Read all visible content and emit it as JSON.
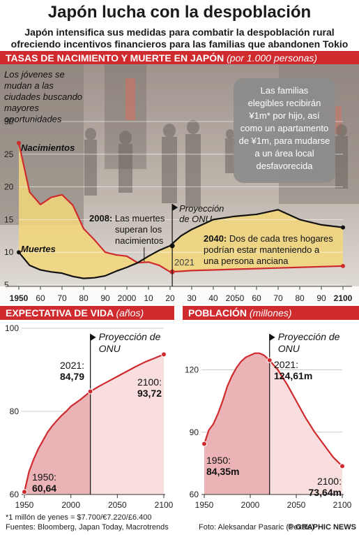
{
  "title": "Japón lucha con la despoblación",
  "subtitle_line1": "Japón intensifica sus medidas para combatir la despoblación rural",
  "subtitle_line2": "ofreciendo incentivos financieros para las familias que abandonen Tokio",
  "section1": {
    "title": "TASAS DE NACIMIENTO Y MUERTE EN JAPÓN",
    "unit": "(por 1.000 personas)"
  },
  "section2": {
    "title": "EXPECTATIVA DE VIDA",
    "unit": "(años)"
  },
  "section3": {
    "title": "POBLACIÓN",
    "unit": "(millones)"
  },
  "footnote": "*1 millón de yenes = $7.700/€7.220/£6.400",
  "sources": "Fuentes: Bloomberg, Japan Today, Macrotrends",
  "photo_credit": "Foto: Aleksandar Pasaric (Pexels)",
  "brand": "© GRAPHIC NEWS",
  "colors": {
    "red": "#cf2a2e",
    "pink": "#f3c6c6",
    "yellow": "#f3d77a",
    "grey_line": "#777777"
  },
  "chart_data": [
    {
      "type": "line",
      "title": "TASAS DE NACIMIENTO Y MUERTE EN JAPÓN",
      "ylim": [
        5,
        30
      ],
      "yticks": [
        5,
        10,
        15,
        20,
        25,
        30
      ],
      "xlim": [
        1950,
        2100
      ],
      "xticks": [
        "1950",
        "60",
        "70",
        "80",
        "90",
        "2000",
        "10",
        "20",
        "30",
        "40",
        "2050",
        "60",
        "70",
        "80",
        "90",
        "2100"
      ],
      "projection_start": 2021,
      "series": [
        {
          "name": "Nacimientos",
          "x": [
            1950,
            1955,
            1960,
            1965,
            1970,
            1975,
            1980,
            1985,
            1990,
            1995,
            2000,
            2005,
            2010,
            2015,
            2020,
            2025,
            2030,
            2040,
            2050,
            2060,
            2070,
            2080,
            2090,
            2100
          ],
          "y": [
            26.7,
            19.2,
            17.3,
            18.4,
            18.8,
            17.2,
            13.6,
            11.9,
            10.0,
            9.6,
            9.4,
            8.4,
            8.5,
            8.0,
            7.0,
            7.1,
            7.2,
            7.3,
            7.4,
            7.5,
            7.6,
            7.7,
            7.8,
            7.9
          ]
        },
        {
          "name": "Muertes",
          "x": [
            1950,
            1955,
            1960,
            1965,
            1970,
            1975,
            1980,
            1985,
            1990,
            1995,
            2000,
            2005,
            2010,
            2015,
            2020,
            2025,
            2030,
            2040,
            2050,
            2060,
            2070,
            2080,
            2090,
            2100
          ],
          "y": [
            10.0,
            8.0,
            7.3,
            7.0,
            6.8,
            6.3,
            6.0,
            6.1,
            6.4,
            7.1,
            7.7,
            8.4,
            9.4,
            10.3,
            11.0,
            12.5,
            13.5,
            15.0,
            15.5,
            15.8,
            16.5,
            15.0,
            14.2,
            13.8
          ]
        }
      ],
      "annotations": {
        "jovenes": "Los jóvenes se mudan a las ciudades buscando mayores oportunidades",
        "familias": "Las familias elegibles recibirán ¥1m* por hijo, así como un apartamento de ¥1m, para mudarse a un área local desfavorecida",
        "a2008_year": "2008:",
        "a2008_text": "Las muertes superan los nacimientos",
        "a2040_year": "2040:",
        "a2040_text": "Dos de cada tres hogares podrían estar manteniendo a una persona anciana",
        "year2021": "2021",
        "proyeccion": "Proyección de ONU"
      }
    },
    {
      "type": "area",
      "title": "EXPECTATIVA DE VIDA",
      "ylim": [
        60,
        100
      ],
      "yticks": [
        60,
        80,
        100
      ],
      "xlim": [
        1950,
        2100
      ],
      "xticks": [
        1950,
        2000,
        2050,
        2100
      ],
      "projection_start": 2021,
      "x": [
        1950,
        1955,
        1960,
        1965,
        1970,
        1975,
        1980,
        1985,
        1990,
        1995,
        2000,
        2005,
        2010,
        2015,
        2021,
        2030,
        2040,
        2050,
        2060,
        2070,
        2080,
        2090,
        2100
      ],
      "y": [
        60.64,
        65.5,
        68.5,
        71.0,
        73.0,
        75.0,
        76.5,
        77.8,
        79.0,
        80.0,
        81.2,
        82.0,
        82.8,
        83.7,
        84.79,
        86.0,
        87.2,
        88.4,
        89.6,
        90.8,
        91.9,
        92.8,
        93.72
      ],
      "labels": {
        "start_year": "1950:",
        "start_value": "60,64",
        "mid_year": "2021:",
        "mid_value": "84,79",
        "end_year": "2100:",
        "end_value": "93,72",
        "proyeccion": "Proyección de ONU"
      }
    },
    {
      "type": "area",
      "title": "POBLACIÓN",
      "ylim": [
        60,
        140
      ],
      "yticks": [
        60,
        90,
        120
      ],
      "xlim": [
        1950,
        2100
      ],
      "xticks": [
        1950,
        2000,
        2050,
        2100
      ],
      "projection_start": 2021,
      "x": [
        1950,
        1955,
        1960,
        1965,
        1970,
        1975,
        1980,
        1985,
        1990,
        1995,
        2000,
        2005,
        2010,
        2015,
        2021,
        2030,
        2040,
        2050,
        2060,
        2070,
        2080,
        2090,
        2100
      ],
      "y": [
        84.35,
        91.0,
        94.0,
        99.0,
        105.0,
        112.0,
        117.0,
        121.0,
        124.0,
        126.0,
        127.0,
        128.0,
        128.0,
        127.0,
        124.61,
        120.0,
        113.0,
        105.0,
        97.0,
        90.0,
        84.0,
        78.0,
        73.64
      ],
      "labels": {
        "start_year": "1950:",
        "start_value": "84,35m",
        "mid_year": "2021:",
        "mid_value": "124,61m",
        "end_year": "2100:",
        "end_value": "73,64m",
        "proyeccion": "Proyección de ONU"
      }
    }
  ]
}
